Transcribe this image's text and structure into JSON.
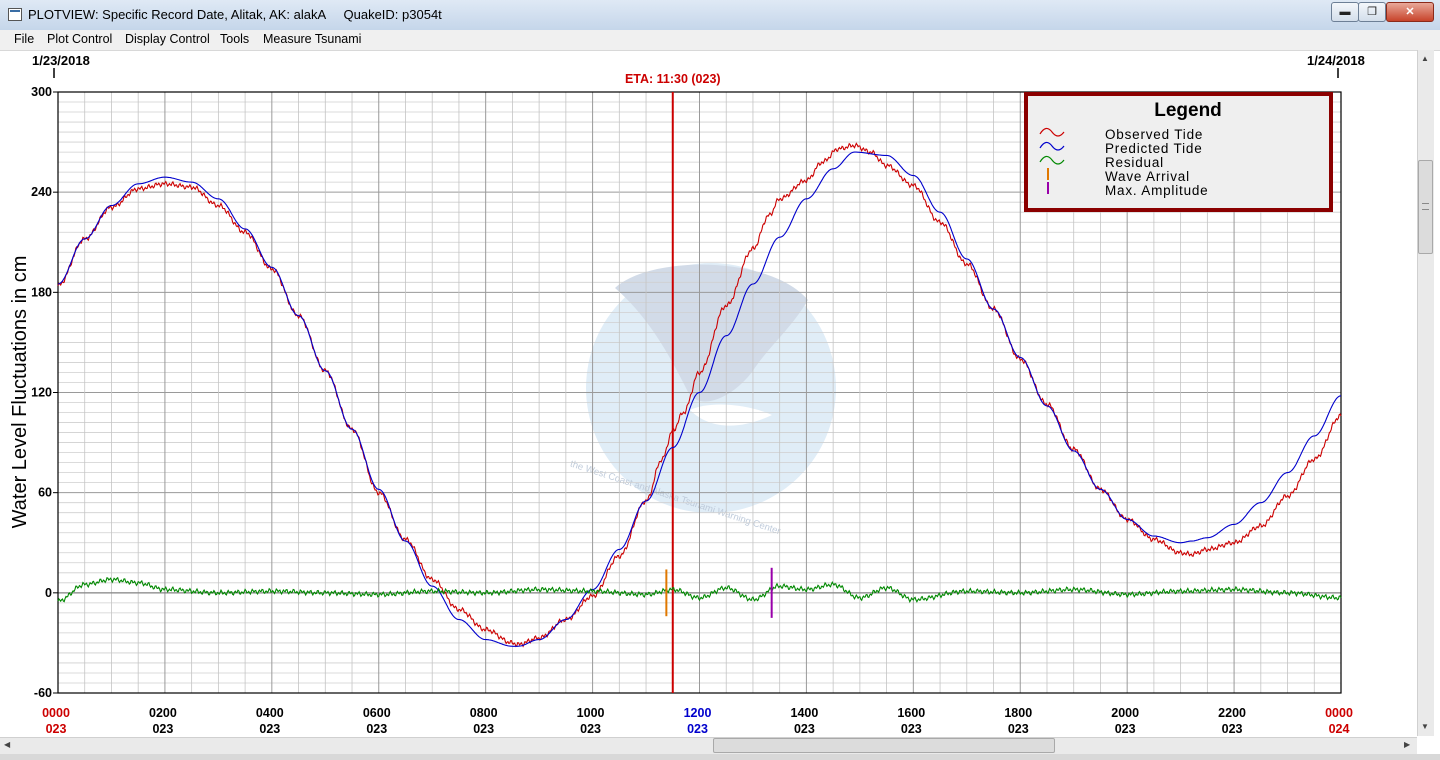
{
  "window": {
    "title": "PLOTVIEW: Specific Record Date, Alitak, AK: alakA     QuakeID: p3054t",
    "min_glyph": "▬",
    "max_glyph": "❐",
    "close_glyph": "✕"
  },
  "menu": [
    "File",
    "Plot Control",
    "Display Control",
    "Tools",
    "Measure Tsunami"
  ],
  "plot": {
    "date_left": "1/23/2018",
    "date_right": "1/24/2018",
    "eta_label": "ETA: 11:30 (023)",
    "y_axis_label": "Water Level Fluctuations in cm",
    "colors": {
      "observed": "#cc0000",
      "predicted": "#0000cc",
      "residual": "#008800",
      "wave_arrival": "#e07800",
      "max_amplitude": "#9900aa",
      "eta_line": "#cc0000",
      "legend_border": "#8b0000",
      "day_start_label": "#cc0000",
      "eta_hour_label": "#0000cc"
    },
    "legend": {
      "title": "Legend",
      "items": [
        {
          "label": "Observed Tide",
          "key": "observed"
        },
        {
          "label": "Predicted Tide",
          "key": "predicted"
        },
        {
          "label": "Residual",
          "key": "residual"
        },
        {
          "label": "Wave Arrival",
          "key": "wave_arrival"
        },
        {
          "label": "Max. Amplitude",
          "key": "max_amplitude"
        }
      ]
    },
    "watermark_text": "the West Coast and Alaska Tsunami Warning Center"
  },
  "chart_data": {
    "type": "line",
    "ylabel": "Water Level Fluctuations in cm",
    "xlabel": "",
    "ylim": [
      -60,
      300
    ],
    "xlim_hours": [
      0,
      24
    ],
    "y_ticks": [
      300,
      240,
      180,
      120,
      60,
      0,
      -60
    ],
    "x_ticks": [
      {
        "hour": 0,
        "time": "0000",
        "day": "023"
      },
      {
        "hour": 2,
        "time": "0200",
        "day": "023"
      },
      {
        "hour": 4,
        "time": "0400",
        "day": "023"
      },
      {
        "hour": 6,
        "time": "0600",
        "day": "023"
      },
      {
        "hour": 8,
        "time": "0800",
        "day": "023"
      },
      {
        "hour": 10,
        "time": "1000",
        "day": "023"
      },
      {
        "hour": 12,
        "time": "1200",
        "day": "023"
      },
      {
        "hour": 14,
        "time": "1400",
        "day": "023"
      },
      {
        "hour": 16,
        "time": "1600",
        "day": "023"
      },
      {
        "hour": 18,
        "time": "1800",
        "day": "023"
      },
      {
        "hour": 20,
        "time": "2000",
        "day": "023"
      },
      {
        "hour": 22,
        "time": "2200",
        "day": "023"
      },
      {
        "hour": 24,
        "time": "0000",
        "day": "024"
      }
    ],
    "grid": true,
    "legend_position": "top-right",
    "eta_hour": 11.5,
    "wave_arrival_hour": 11.38,
    "max_amplitude_hour": 13.35,
    "series": [
      {
        "name": "Observed Tide",
        "x": [
          0,
          0.5,
          1,
          1.5,
          2,
          2.5,
          3,
          3.5,
          4,
          4.5,
          5,
          5.5,
          6,
          6.5,
          7,
          7.5,
          8,
          8.5,
          8.6,
          9,
          9.5,
          10,
          10.5,
          11,
          11.3,
          11.5,
          11.7,
          12,
          12.5,
          13,
          13.3,
          13.5,
          14,
          14.3,
          14.6,
          14.9,
          15.2,
          15.5,
          16,
          16.5,
          17,
          17.5,
          18,
          18.5,
          19,
          19.5,
          20,
          20.5,
          21,
          21.2,
          21.5,
          22,
          22.5,
          23,
          23.5,
          24
        ],
        "y": [
          184,
          212,
          231,
          242,
          245,
          243,
          232,
          216,
          194,
          166,
          133,
          98,
          60,
          32,
          8,
          -10,
          -22,
          -30,
          -31,
          -27,
          -16,
          -2,
          22,
          55,
          80,
          97,
          108,
          132,
          172,
          206,
          226,
          236,
          247,
          258,
          266,
          268,
          264,
          256,
          244,
          222,
          197,
          170,
          140,
          113,
          86,
          62,
          44,
          32,
          24,
          23,
          26,
          30,
          40,
          58,
          80,
          106
        ]
      },
      {
        "name": "Predicted Tide",
        "x": [
          0,
          0.5,
          1,
          1.5,
          2,
          2.5,
          3,
          3.5,
          4,
          4.5,
          5,
          5.5,
          6,
          6.5,
          7,
          7.5,
          8,
          8.5,
          8.6,
          9,
          9.5,
          10,
          10.5,
          11,
          11.5,
          12,
          12.5,
          13,
          13.5,
          14,
          14.5,
          14.9,
          15.5,
          16,
          16.5,
          17,
          17.5,
          18,
          18.5,
          19,
          19.5,
          20,
          20.5,
          21,
          21.2,
          21.5,
          22,
          22.5,
          23,
          23.5,
          24
        ],
        "y": [
          185,
          212,
          232,
          245,
          249,
          246,
          236,
          218,
          195,
          166,
          133,
          98,
          62,
          31,
          4,
          -16,
          -28,
          -32,
          -32,
          -28,
          -16,
          2,
          26,
          55,
          87,
          120,
          154,
          185,
          213,
          236,
          254,
          264,
          262,
          250,
          228,
          200,
          170,
          141,
          112,
          85,
          62,
          44,
          34,
          30,
          31,
          33,
          41,
          54,
          72,
          94,
          118
        ]
      },
      {
        "name": "Residual",
        "x": [
          0,
          0.5,
          1,
          1.5,
          2,
          3,
          4,
          5,
          6,
          7,
          8,
          9,
          10,
          11,
          11.5,
          12,
          12.5,
          13,
          13.5,
          14,
          14.5,
          15,
          15.5,
          16,
          17,
          18,
          19,
          20,
          21,
          22,
          23,
          24
        ],
        "y": [
          -5,
          5,
          8,
          6,
          2,
          0,
          1,
          0,
          -1,
          1,
          0,
          2,
          1,
          -1,
          2,
          -3,
          3,
          -4,
          4,
          2,
          5,
          -3,
          3,
          -4,
          1,
          0,
          2,
          -1,
          1,
          2,
          0,
          -3
        ]
      }
    ]
  }
}
